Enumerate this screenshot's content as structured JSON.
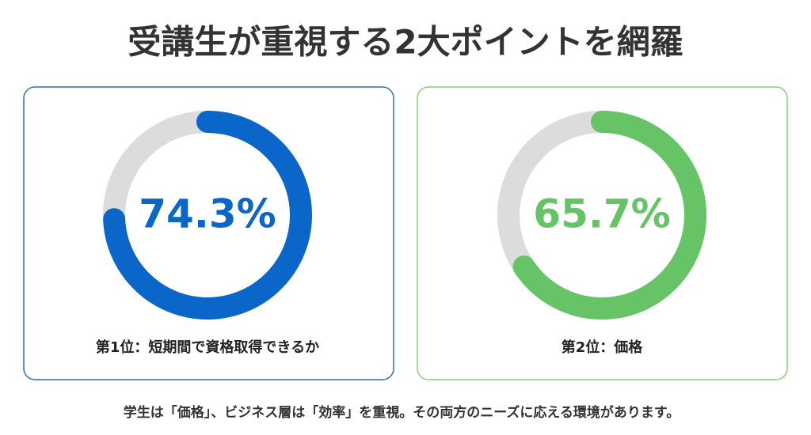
{
  "title": "受講生が重視する2大ポイントを網羅",
  "chart_data": [
    {
      "type": "donut",
      "values": [
        74.3
      ],
      "value_labels": [
        "74.3%"
      ],
      "label": "第1位：短期間で資格取得できるか",
      "color": "#0a66c8",
      "track_color": "#dcdcdc",
      "border_color": "#2f6fb0"
    },
    {
      "type": "donut",
      "values": [
        65.7
      ],
      "value_labels": [
        "65.7%"
      ],
      "label": "第2位：価格",
      "color": "#66c466",
      "track_color": "#dcdcdc",
      "border_color": "#86cf7a"
    }
  ],
  "footer": "学生は「価格」、ビジネス層は「効率」を重視。その両方のニーズに応える環境があります。"
}
